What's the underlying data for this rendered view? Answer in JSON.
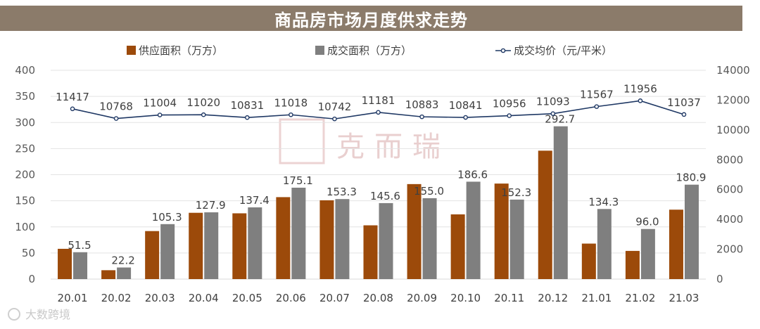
{
  "page": {
    "title": "商品房市场月度供求走势"
  },
  "watermarks": {
    "center": "克而瑞",
    "corner": "大数跨境"
  },
  "colors": {
    "supply": "#9c4a0a",
    "deal": "#7f7f7f",
    "price": "#1f3864",
    "axis": "#d9d9d9",
    "grid": "#e3e3e3"
  },
  "chart_data": {
    "type": "bar",
    "title": "商品房市场月度供求走势",
    "categories": [
      "20.01",
      "20.02",
      "20.03",
      "20.04",
      "20.05",
      "20.06",
      "20.07",
      "20.08",
      "20.09",
      "20.10",
      "20.11",
      "20.12",
      "21.01",
      "21.02",
      "21.03"
    ],
    "series": [
      {
        "name": "供应面积（万方）",
        "type": "bar",
        "axis": "left",
        "values": [
          58,
          17,
          92,
          127,
          126,
          157,
          151,
          103,
          182,
          124,
          183,
          246,
          68,
          54,
          133
        ]
      },
      {
        "name": "成交面积（万方）",
        "type": "bar",
        "axis": "left",
        "values": [
          51.5,
          22.2,
          105.3,
          127.9,
          137.4,
          175.1,
          153.3,
          145.6,
          155.0,
          186.6,
          152.3,
          292.7,
          134.3,
          96.0,
          180.9
        ],
        "labels": [
          "51.5",
          "22.2",
          "105.3",
          "127.9",
          "137.4",
          "175.1",
          "153.3",
          "145.6",
          "155.0",
          "186.6",
          "152.3",
          "292.7",
          "134.3",
          "96.0",
          "180.9"
        ]
      },
      {
        "name": "成交均价（元/平米）",
        "type": "line",
        "axis": "right",
        "values": [
          11417,
          10768,
          11004,
          11020,
          10831,
          11018,
          10742,
          11181,
          10883,
          10841,
          10956,
          11093,
          11567,
          11956,
          11037
        ],
        "labels": [
          "11417",
          "10768",
          "11004",
          "11020",
          "10831",
          "11018",
          "10742",
          "11181",
          "10883",
          "10841",
          "10956",
          "11093",
          "11567",
          "11956",
          "11037"
        ]
      }
    ],
    "y_left": {
      "range": [
        0,
        400
      ],
      "ticks": [
        "0",
        "50",
        "100",
        "150",
        "200",
        "250",
        "300",
        "350",
        "400"
      ]
    },
    "y_right": {
      "range": [
        0,
        14000
      ],
      "ticks": [
        "0",
        "2000",
        "4000",
        "6000",
        "8000",
        "10000",
        "12000",
        "14000"
      ]
    },
    "grid": true,
    "legend": "top-center"
  }
}
